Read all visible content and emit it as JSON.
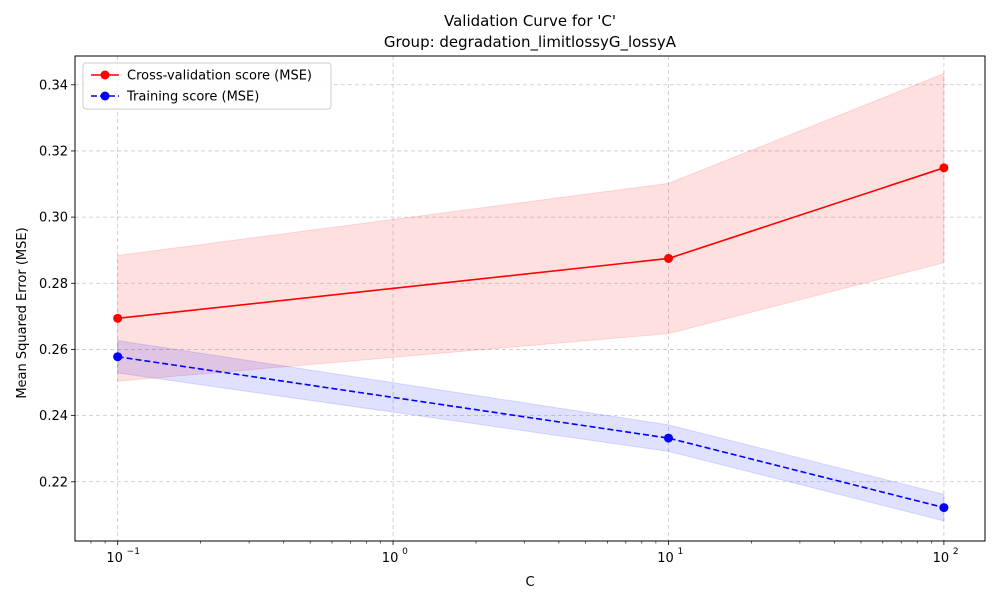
{
  "chart_data": {
    "type": "line",
    "title": "Validation Curve for 'C'",
    "subtitle": "Group: degradation_limitlossyG_lossyA",
    "xlabel": "C",
    "ylabel": "Mean Squared Error (MSE)",
    "xscale": "log",
    "xlim": [
      0.07,
      141
    ],
    "ylim": [
      0.2021,
      0.3487
    ],
    "x": [
      0.1,
      10,
      100
    ],
    "x_ticks": [
      0.1,
      1,
      10,
      100
    ],
    "x_tick_labels": [
      "10",
      "10",
      "10",
      "10"
    ],
    "x_tick_exponents": [
      "−1",
      "0",
      "1",
      "2"
    ],
    "y_ticks": [
      0.22,
      0.24,
      0.26,
      0.28,
      0.3,
      0.32,
      0.34
    ],
    "y_tick_labels": [
      "0.22",
      "0.24",
      "0.26",
      "0.28",
      "0.30",
      "0.32",
      "0.34"
    ],
    "grid": true,
    "legend_position": "top-left",
    "series": [
      {
        "name": "Cross-validation score (MSE)",
        "values": [
          0.2694,
          0.2875,
          0.3149
        ],
        "lower": [
          0.2504,
          0.2648,
          0.2862
        ],
        "upper": [
          0.2884,
          0.3102,
          0.3434
        ],
        "color": "#ff0000",
        "band_color": "#ffe0e0",
        "line_style": "solid",
        "marker": "circle"
      },
      {
        "name": "Training score (MSE)",
        "values": [
          0.2578,
          0.2332,
          0.2122
        ],
        "lower": [
          0.2529,
          0.2292,
          0.2082
        ],
        "upper": [
          0.2627,
          0.2372,
          0.2162
        ],
        "color": "#0000ff",
        "band_color": "#e0e0ff",
        "line_style": "dashed",
        "marker": "circle"
      }
    ]
  }
}
